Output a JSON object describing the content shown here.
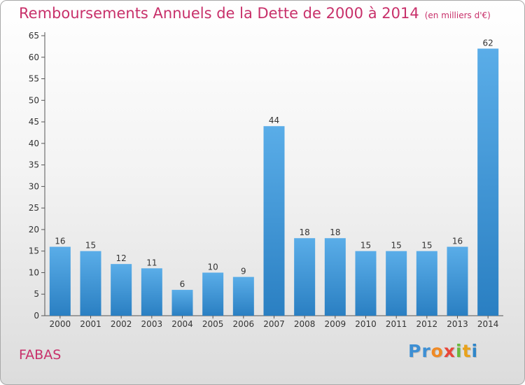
{
  "header": {
    "title": "Remboursements Annuels de la Dette de 2000 à 2014",
    "unit": "(en milliers d'€)"
  },
  "footer": {
    "town": "FABAS",
    "logo_letters": [
      "P",
      "r",
      "o",
      "x",
      "i",
      "t",
      "i"
    ],
    "logo_colors": [
      "#3d8fd4",
      "#3d8fd4",
      "#f08a24",
      "#e8463a",
      "#6bb93c",
      "#e8a21c",
      "#2f86c9"
    ]
  },
  "chart_data": {
    "type": "bar",
    "title": "Remboursements Annuels de la Dette de 2000 à 2014",
    "xlabel": "",
    "ylabel": "",
    "categories": [
      "2000",
      "2001",
      "2002",
      "2003",
      "2004",
      "2005",
      "2006",
      "2007",
      "2008",
      "2009",
      "2010",
      "2011",
      "2012",
      "2013",
      "2014"
    ],
    "values": [
      16,
      15,
      12,
      11,
      6,
      10,
      9,
      44,
      18,
      18,
      15,
      15,
      15,
      16,
      62
    ],
    "ylim": [
      0,
      65
    ],
    "yticks": [
      0,
      5,
      10,
      15,
      20,
      25,
      30,
      35,
      40,
      45,
      50,
      55,
      60,
      65
    ],
    "grid": false,
    "bar_color_light": "#5aade8",
    "bar_color_dark": "#2a7fc2"
  }
}
